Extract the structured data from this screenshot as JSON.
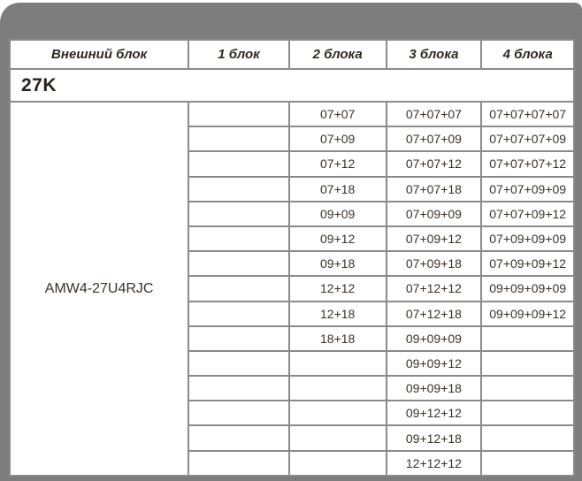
{
  "colors": {
    "sheet_gray": "#7d7d7d",
    "border_gray": "#8a8a8a",
    "text_dark": "#3a3128"
  },
  "header": {
    "cols": [
      "Внешний блок",
      "1 блок",
      "2 блока",
      "3 блока",
      "4 блока"
    ]
  },
  "section": {
    "label": "27K"
  },
  "model": "AMW4-27U4RJC",
  "rows": [
    {
      "b1": "",
      "b2": "07+07",
      "b3": "07+07+07",
      "b4": "07+07+07+07"
    },
    {
      "b1": "",
      "b2": "07+09",
      "b3": "07+07+09",
      "b4": "07+07+07+09"
    },
    {
      "b1": "",
      "b2": "07+12",
      "b3": "07+07+12",
      "b4": "07+07+07+12"
    },
    {
      "b1": "",
      "b2": "07+18",
      "b3": "07+07+18",
      "b4": "07+07+09+09"
    },
    {
      "b1": "",
      "b2": "09+09",
      "b3": "07+09+09",
      "b4": "07+07+09+12"
    },
    {
      "b1": "",
      "b2": "09+12",
      "b3": "07+09+12",
      "b4": "07+09+09+09"
    },
    {
      "b1": "",
      "b2": "09+18",
      "b3": "07+09+18",
      "b4": "07+09+09+12"
    },
    {
      "b1": "",
      "b2": "12+12",
      "b3": "07+12+12",
      "b4": "09+09+09+09"
    },
    {
      "b1": "",
      "b2": "12+18",
      "b3": "07+12+18",
      "b4": "09+09+09+12"
    },
    {
      "b1": "",
      "b2": "18+18",
      "b3": "09+09+09",
      "b4": ""
    },
    {
      "b1": "",
      "b2": "",
      "b3": "09+09+12",
      "b4": ""
    },
    {
      "b1": "",
      "b2": "",
      "b3": "09+09+18",
      "b4": ""
    },
    {
      "b1": "",
      "b2": "",
      "b3": "09+12+12",
      "b4": ""
    },
    {
      "b1": "",
      "b2": "",
      "b3": "09+12+18",
      "b4": ""
    },
    {
      "b1": "",
      "b2": "",
      "b3": "12+12+12",
      "b4": ""
    }
  ]
}
